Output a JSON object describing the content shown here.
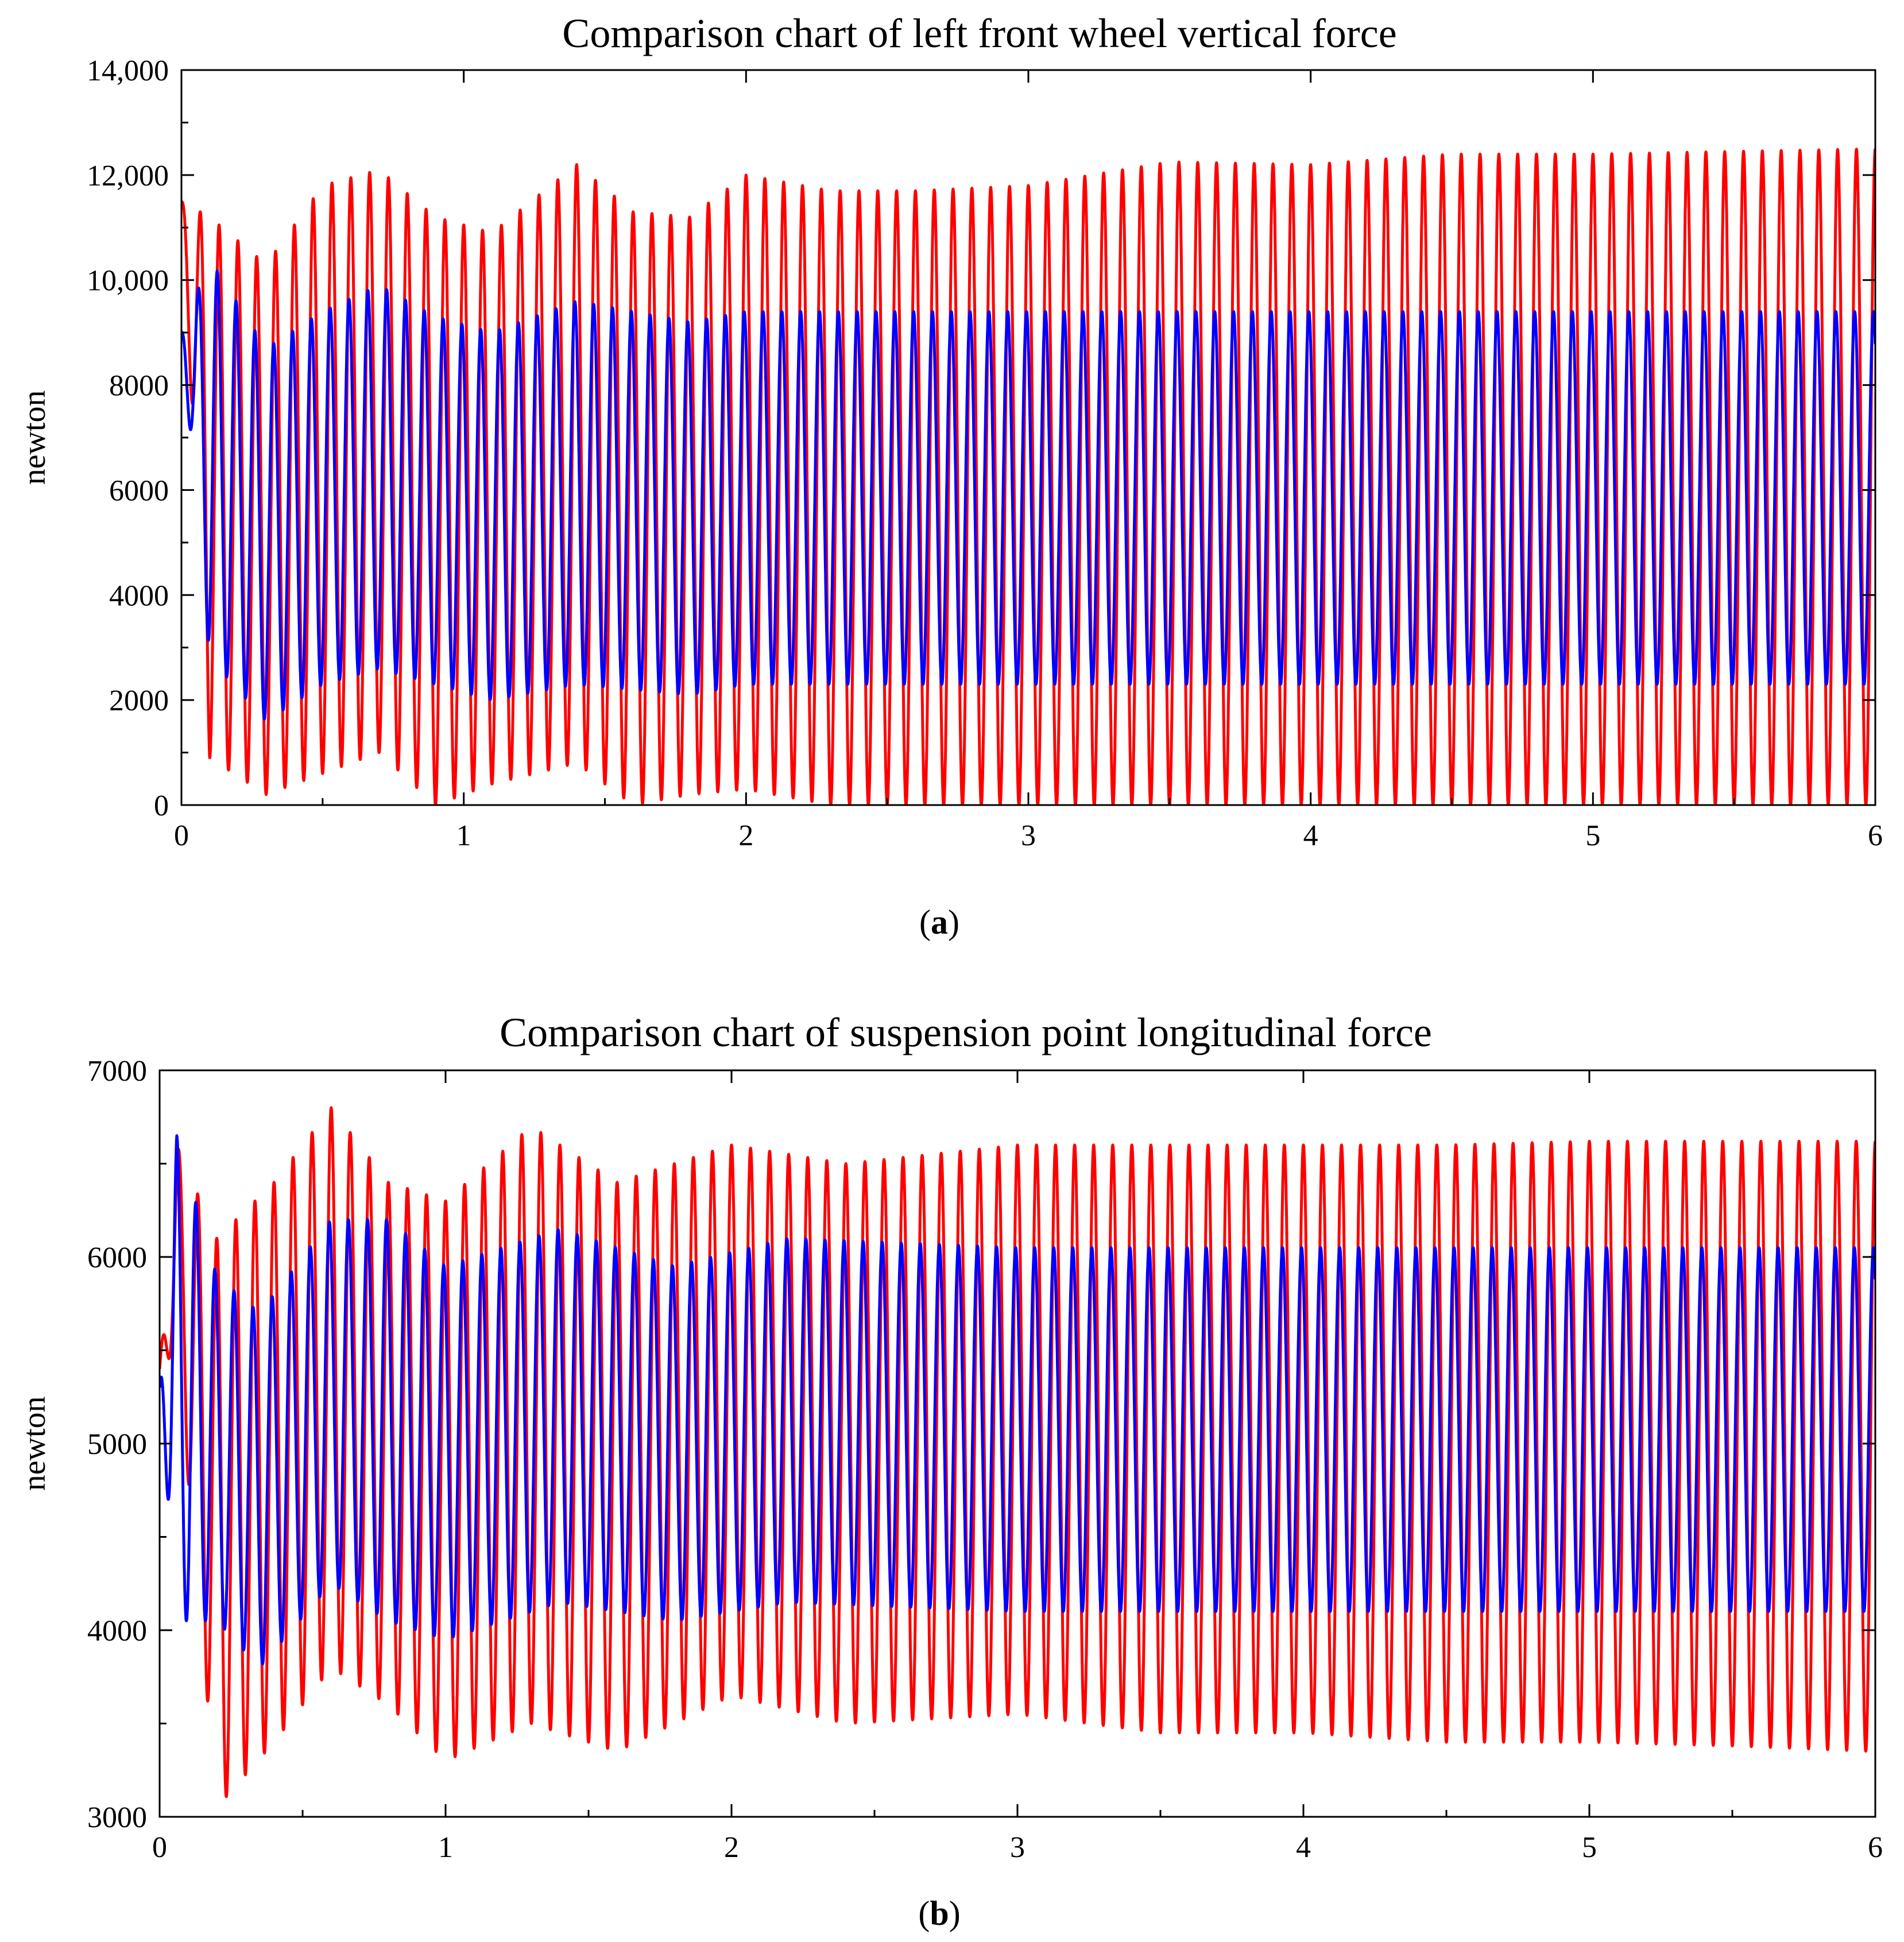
{
  "chart_data": [
    {
      "type": "line",
      "id": "a",
      "title": "Comparison chart of left front wheel vertical force",
      "xlabel": "",
      "ylabel": "newton",
      "caption_letter": "a",
      "caption_open": "(",
      "caption_close": ")",
      "xlim": [
        0,
        6
      ],
      "ylim": [
        0,
        14000
      ],
      "xticks": [
        0,
        1,
        2,
        3,
        4,
        5,
        6
      ],
      "xtick_labels": [
        "0",
        "1",
        "2",
        "3",
        "4",
        "5",
        "6"
      ],
      "yticks": [
        0,
        2000,
        4000,
        6000,
        8000,
        10000,
        12000,
        14000
      ],
      "ytick_labels": [
        "0",
        "2000",
        "4000",
        "6000",
        "8000",
        "10,000",
        "12,000",
        "14,000"
      ],
      "grid": false,
      "series": [
        {
          "name": "red",
          "color": "#ff0000",
          "frequency_hz": 15,
          "start_value": 11500,
          "envelope_t": [
            0,
            0.1,
            0.3,
            0.5,
            0.7,
            0.9,
            1.1,
            1.4,
            1.6,
            1.8,
            2.0,
            2.3,
            2.6,
            3.0,
            3.5,
            4.0,
            4.5,
            5.0,
            5.5,
            6.0
          ],
          "envelope_max": [
            11500,
            11200,
            10300,
            11800,
            12100,
            11200,
            10900,
            12200,
            11300,
            11200,
            12000,
            11700,
            11700,
            11800,
            12250,
            12200,
            12400,
            12400,
            12450,
            12500
          ],
          "envelope_min": [
            11500,
            900,
            200,
            600,
            1000,
            0,
            400,
            800,
            0,
            200,
            300,
            0,
            0,
            0,
            0,
            0,
            0,
            0,
            0,
            0
          ]
        },
        {
          "name": "blue",
          "color": "#0000ff",
          "frequency_hz": 15,
          "start_value": 9000,
          "envelope_t": [
            0,
            0.1,
            0.3,
            0.5,
            0.7,
            0.9,
            1.1,
            1.4,
            1.6,
            1.8,
            2.0,
            2.5,
            3.0,
            4.0,
            5.0,
            6.0
          ],
          "envelope_max": [
            9000,
            10400,
            8700,
            9400,
            9900,
            9300,
            9000,
            9600,
            9400,
            9200,
            9400,
            9400,
            9400,
            9400,
            9400,
            9400
          ],
          "envelope_min": [
            9000,
            2800,
            1600,
            2300,
            2600,
            2300,
            2000,
            2300,
            2200,
            2100,
            2300,
            2300,
            2300,
            2300,
            2300,
            2300
          ]
        }
      ]
    },
    {
      "type": "line",
      "id": "b",
      "title": "Comparison chart of suspension point longitudinal force",
      "xlabel": "",
      "ylabel": "newton",
      "caption_letter": "b",
      "caption_open": "(",
      "caption_close": ")",
      "xlim": [
        0,
        6
      ],
      "ylim": [
        3000,
        7000
      ],
      "xticks": [
        0,
        1,
        2,
        3,
        4,
        5,
        6
      ],
      "xtick_labels": [
        "0",
        "1",
        "2",
        "3",
        "4",
        "5",
        "6"
      ],
      "yticks": [
        3000,
        4000,
        5000,
        6000,
        7000
      ],
      "ytick_labels": [
        "3000",
        "4000",
        "5000",
        "6000",
        "7000"
      ],
      "grid": false,
      "series": [
        {
          "name": "red",
          "color": "#ff0000",
          "frequency_hz": 15,
          "start_value": 5400,
          "envelope_t": [
            0,
            0.06,
            0.2,
            0.4,
            0.6,
            0.8,
            1.0,
            1.3,
            1.6,
            2.0,
            2.4,
            3.0,
            3.5,
            4.0,
            4.5,
            5.0,
            5.5,
            6.0
          ],
          "envelope_max": [
            5400,
            6600,
            6100,
            6400,
            6800,
            6400,
            6300,
            6700,
            6400,
            6600,
            6500,
            6600,
            6600,
            6600,
            6600,
            6620,
            6620,
            6620
          ],
          "envelope_min": [
            5400,
            5500,
            3050,
            3400,
            3800,
            3600,
            3300,
            3500,
            3350,
            3650,
            3500,
            3550,
            3450,
            3450,
            3400,
            3400,
            3380,
            3350
          ]
        },
        {
          "name": "blue",
          "color": "#0000ff",
          "frequency_hz": 15,
          "start_value": 5300,
          "envelope_t": [
            0,
            0.06,
            0.2,
            0.35,
            0.6,
            0.8,
            1.0,
            1.4,
            1.8,
            2.2,
            3.0,
            4.0,
            5.0,
            6.0
          ],
          "envelope_max": [
            5300,
            6650,
            5900,
            5700,
            6200,
            6200,
            5950,
            6150,
            5950,
            6100,
            6050,
            6050,
            6050,
            6050
          ],
          "envelope_min": [
            5300,
            4050,
            4050,
            3800,
            4250,
            4050,
            3950,
            4150,
            4050,
            4150,
            4100,
            4100,
            4100,
            4100
          ]
        }
      ]
    }
  ]
}
